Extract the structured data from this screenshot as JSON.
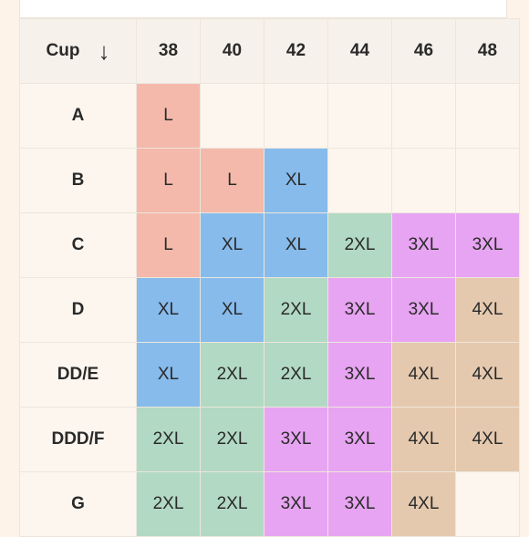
{
  "table": {
    "cup_header": "Cup",
    "sort_icon": "arrow-down-icon",
    "sort_glyph": "↓",
    "bands": [
      "38",
      "40",
      "42",
      "44",
      "46",
      "48"
    ],
    "rows": [
      {
        "cup": "A",
        "sizes": [
          "L",
          "",
          "",
          "",
          "",
          ""
        ]
      },
      {
        "cup": "B",
        "sizes": [
          "L",
          "L",
          "XL",
          "",
          "",
          ""
        ]
      },
      {
        "cup": "C",
        "sizes": [
          "L",
          "XL",
          "XL",
          "2XL",
          "3XL",
          "3XL"
        ]
      },
      {
        "cup": "D",
        "sizes": [
          "XL",
          "XL",
          "2XL",
          "3XL",
          "3XL",
          "4XL"
        ]
      },
      {
        "cup": "DD/E",
        "sizes": [
          "XL",
          "2XL",
          "2XL",
          "3XL",
          "4XL",
          "4XL"
        ]
      },
      {
        "cup": "DDD/F",
        "sizes": [
          "2XL",
          "2XL",
          "3XL",
          "3XL",
          "4XL",
          "4XL"
        ]
      },
      {
        "cup": "G",
        "sizes": [
          "2XL",
          "2XL",
          "3XL",
          "3XL",
          "4XL",
          ""
        ]
      }
    ]
  },
  "colors": {
    "L": "#f4b9ab",
    "XL": "#86bbec",
    "2XL": "#b2d9c3",
    "3XL": "#e7a4f2",
    "4XL": "#e5c9ae",
    "empty": "#fdf6ef",
    "page_background": "#fdf3e8"
  }
}
